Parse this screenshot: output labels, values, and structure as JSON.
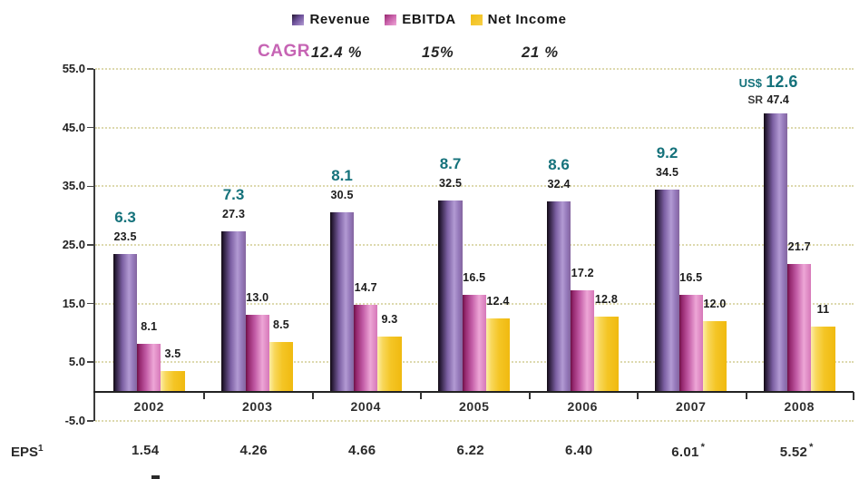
{
  "annotations": {
    "cagr": {
      "label": "CAGR",
      "values": [
        "12.4 %",
        "15%",
        "21 %"
      ]
    }
  },
  "colors": {
    "revenue": "#8a6cae",
    "ebitda": "#cf6cb0",
    "net_income": "#f5c41f",
    "usd_teal": "#15727b",
    "cagr_pink": "#c664b4",
    "gridline": "#ddd9ae"
  },
  "chart_data": {
    "type": "bar",
    "title": "",
    "xlabel": "",
    "ylabel": "",
    "ylim": [
      -5,
      55
    ],
    "grid": true,
    "legend_position": "top",
    "ytick_values": [
      55,
      45,
      35,
      25,
      15,
      5,
      -5
    ],
    "ytick_labels": [
      "55.0",
      "45.0",
      "35.0",
      "25.0",
      "15.0",
      "5.0",
      "-5.0"
    ],
    "categories": [
      "2002",
      "2003",
      "2004",
      "2005",
      "2006",
      "2007",
      "2008"
    ],
    "series": [
      {
        "name": "Revenue",
        "color": "#8a6cae",
        "values": [
          23.5,
          27.3,
          30.5,
          32.5,
          32.4,
          34.5,
          47.4
        ],
        "labels": [
          "23.5",
          "27.3",
          "30.5",
          "32.5",
          "32.4",
          "34.5",
          "47.4"
        ]
      },
      {
        "name": "EBITDA",
        "color": "#cf6cb0",
        "values": [
          8.1,
          13.0,
          14.7,
          16.5,
          17.2,
          16.5,
          21.7
        ],
        "labels": [
          "8.1",
          "13.0",
          "14.7",
          "16.5",
          "17.2",
          "16.5",
          "21.7"
        ]
      },
      {
        "name": "Net Income",
        "color": "#f5c41f",
        "values": [
          3.5,
          8.5,
          9.3,
          12.4,
          12.8,
          12.0,
          11
        ],
        "labels": [
          "3.5",
          "8.5",
          "9.3",
          "12.4",
          "12.8",
          "12.0",
          "11"
        ]
      }
    ],
    "revenue_usd": {
      "color": "#15727b",
      "values": [
        6.3,
        7.3,
        8.1,
        8.7,
        8.6,
        9.2,
        12.6
      ],
      "labels": [
        "6.3",
        "7.3",
        "8.1",
        "8.7",
        "8.6",
        "9.2",
        "12.6"
      ],
      "usd_prefix_2008": "US$",
      "sr_prefix_2008": "SR",
      "sr_value_2008": "47.4"
    }
  },
  "eps": {
    "label": "EPS",
    "sup": "1",
    "values": [
      "1.54",
      "4.26",
      "4.66",
      "6.22",
      "6.40",
      "6.01",
      "5.52"
    ],
    "asterisk": [
      false,
      false,
      false,
      false,
      false,
      true,
      true
    ],
    "asterisk_char": "*"
  }
}
